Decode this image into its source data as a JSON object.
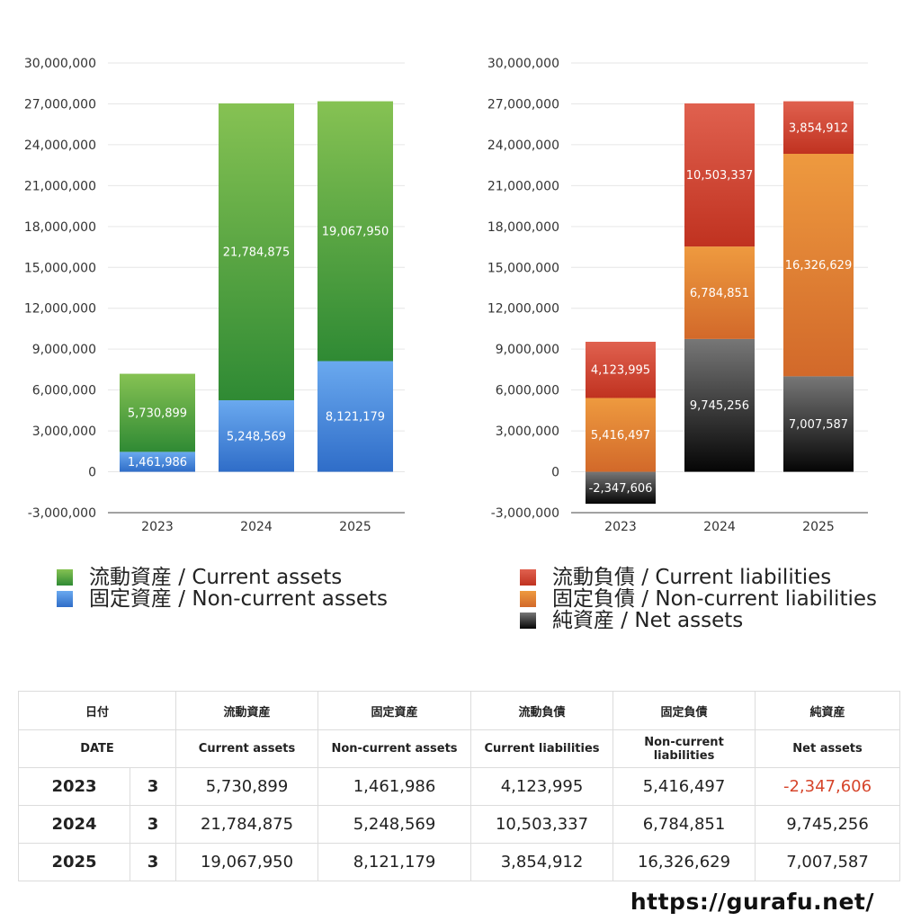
{
  "chart_data": [
    {
      "type": "bar",
      "stacked": true,
      "categories": [
        "2023",
        "2024",
        "2025"
      ],
      "ylim": [
        -3000000,
        30000000
      ],
      "yticks": [
        30000000,
        27000000,
        24000000,
        21000000,
        18000000,
        15000000,
        12000000,
        9000000,
        6000000,
        3000000,
        0,
        -3000000
      ],
      "ytick_labels": [
        "30,000,000",
        "27,000,000",
        "24,000,000",
        "21,000,000",
        "18,000,000",
        "15,000,000",
        "12,000,000",
        "9,000,000",
        "6,000,000",
        "3,000,000",
        "0",
        "-3,000,000"
      ],
      "grid": true,
      "series": [
        {
          "name": "固定資産 / Non-current assets",
          "values": [
            1461986,
            5248569,
            8121179
          ],
          "labels": [
            "1,461,986",
            "5,248,569",
            "8,121,179"
          ],
          "color_top": "#6aa9ef",
          "color_bottom": "#2f6dc8"
        },
        {
          "name": "流動資産 / Current assets",
          "values": [
            5730899,
            21784875,
            19067950
          ],
          "labels": [
            "5,730,899",
            "21,784,875",
            "19,067,950"
          ],
          "color_top": "#86c253",
          "color_bottom": "#2f8a34"
        }
      ]
    },
    {
      "type": "bar",
      "stacked": true,
      "categories": [
        "2023",
        "2024",
        "2025"
      ],
      "ylim": [
        -3000000,
        30000000
      ],
      "yticks": [
        30000000,
        27000000,
        24000000,
        21000000,
        18000000,
        15000000,
        12000000,
        9000000,
        6000000,
        3000000,
        0,
        -3000000
      ],
      "ytick_labels": [
        "30,000,000",
        "27,000,000",
        "24,000,000",
        "21,000,000",
        "18,000,000",
        "15,000,000",
        "12,000,000",
        "9,000,000",
        "6,000,000",
        "3,000,000",
        "0",
        "-3,000,000"
      ],
      "grid": true,
      "series": [
        {
          "name": "純資産 / Net assets",
          "values": [
            -2347606,
            9745256,
            7007587
          ],
          "labels": [
            "-2,347,606",
            "9,745,256",
            "7,007,587"
          ],
          "color_top": "#777777",
          "color_bottom": "#050505"
        },
        {
          "name": "固定負債 / Non-current liabilities",
          "values": [
            5416497,
            6784851,
            16326629
          ],
          "labels": [
            "5,416,497",
            "6,784,851",
            "16,326,629"
          ],
          "color_top": "#ee9a3f",
          "color_bottom": "#d2692a"
        },
        {
          "name": "流動負債 / Current liabilities",
          "values": [
            4123995,
            10503337,
            3854912
          ],
          "labels": [
            "4,123,995",
            "10,503,337",
            "3,854,912"
          ],
          "color_top": "#e0614f",
          "color_bottom": "#c03220"
        }
      ]
    }
  ],
  "legend_left": [
    {
      "label": "流動資産 / Current assets",
      "color_top": "#86c253",
      "color_bottom": "#2f8a34"
    },
    {
      "label": "固定資産 / Non-current assets",
      "color_top": "#6aa9ef",
      "color_bottom": "#2f6dc8"
    }
  ],
  "legend_right": [
    {
      "label": "流動負債 / Current liabilities",
      "color_top": "#e0614f",
      "color_bottom": "#c03220"
    },
    {
      "label": "固定負債 / Non-current liabilities",
      "color_top": "#ee9a3f",
      "color_bottom": "#d2692a"
    },
    {
      "label": "純資産 / Net assets",
      "color_top": "#777777",
      "color_bottom": "#050505"
    }
  ],
  "table": {
    "header_jp": [
      "日付",
      "流動資産",
      "固定資産",
      "流動負債",
      "固定負債",
      "純資産"
    ],
    "header_en": [
      "DATE",
      "Current assets",
      "Non-current assets",
      "Current liabilities",
      "Non-current liabilities",
      "Net assets"
    ],
    "rows": [
      {
        "year": "2023",
        "month": "3",
        "values": [
          "5,730,899",
          "1,461,986",
          "4,123,995",
          "5,416,497",
          "-2,347,606"
        ]
      },
      {
        "year": "2024",
        "month": "3",
        "values": [
          "21,784,875",
          "5,248,569",
          "10,503,337",
          "6,784,851",
          "9,745,256"
        ]
      },
      {
        "year": "2025",
        "month": "3",
        "values": [
          "19,067,950",
          "8,121,179",
          "3,854,912",
          "16,326,629",
          "7,007,587"
        ]
      }
    ],
    "negative_color": "#d6452b"
  },
  "footer": {
    "url": "https://gurafu.net/"
  }
}
